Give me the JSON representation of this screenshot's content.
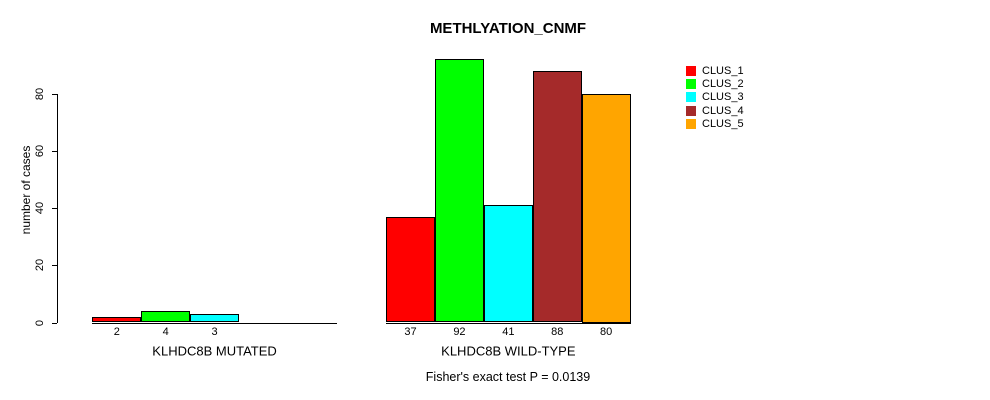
{
  "title": "METHLYATION_CNMF",
  "footer": "Fisher's exact test P = 0.0139",
  "chart_data": {
    "type": "bar",
    "title": "METHLYATION_CNMF",
    "xlabel": "",
    "ylabel": "number of cases",
    "ylim": [
      0,
      92
    ],
    "yticks": [
      0,
      20,
      40,
      60,
      80
    ],
    "grid": false,
    "legend_position": "right",
    "categories": [
      "CLUS_1",
      "CLUS_2",
      "CLUS_3",
      "CLUS_4",
      "CLUS_5"
    ],
    "colors": [
      "#ff0000",
      "#00ff00",
      "#00ffff",
      "#a52a2a",
      "#ffa500"
    ],
    "groups": [
      {
        "label": "KLHDC8B MUTATED",
        "values": [
          2,
          4,
          3,
          0,
          0
        ],
        "bar_labels": [
          "2",
          "4",
          "3",
          "",
          ""
        ]
      },
      {
        "label": "KLHDC8B WILD-TYPE",
        "values": [
          37,
          92,
          41,
          88,
          80
        ],
        "bar_labels": [
          "37",
          "92",
          "41",
          "88",
          "80"
        ]
      }
    ],
    "legend": [
      {
        "label": "CLUS_1",
        "color": "#ff0000"
      },
      {
        "label": "CLUS_2",
        "color": "#00ff00"
      },
      {
        "label": "CLUS_3",
        "color": "#00ffff"
      },
      {
        "label": "CLUS_4",
        "color": "#a52a2a"
      },
      {
        "label": "CLUS_5",
        "color": "#ffa500"
      }
    ],
    "annotation": "Fisher's exact test P = 0.0139"
  }
}
